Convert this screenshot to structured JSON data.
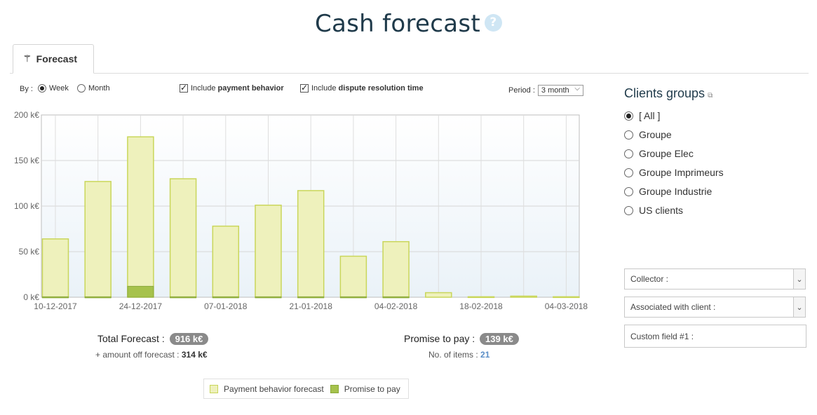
{
  "page": {
    "title": "Cash forecast",
    "help_icon": "question-circle-icon"
  },
  "tabs": [
    {
      "label": "Forecast",
      "icon": "magic-wand-icon"
    }
  ],
  "controls": {
    "by_label": "By :",
    "by_options": [
      {
        "label": "Week",
        "selected": true
      },
      {
        "label": "Month",
        "selected": false
      }
    ],
    "include_payment_prefix": "Include",
    "include_payment_bold": "payment behavior",
    "include_dispute_prefix": "Include",
    "include_dispute_bold": "dispute resolution time",
    "period_label": "Period :",
    "period_value": "3 month"
  },
  "chart_data": {
    "type": "bar",
    "stacked": true,
    "y_ticks": [
      "0 k€",
      "50 k€",
      "100 k€",
      "150 k€",
      "200 k€"
    ],
    "ylim": [
      0,
      200
    ],
    "x_tick_labels": [
      "10-12-2017",
      "24-12-2017",
      "07-01-2018",
      "21-01-2018",
      "04-02-2018",
      "18-02-2018",
      "04-03-2018"
    ],
    "series": [
      {
        "name": "Payment behavior forecast",
        "color": "#eef1bc",
        "stroke": "#c9d65a",
        "values": [
          64,
          127,
          176,
          130,
          78,
          101,
          117,
          45,
          61,
          5,
          0.5,
          1.2,
          0.5
        ]
      },
      {
        "name": "Promise to pay",
        "color": "#a6c24c",
        "stroke": "#8aa93a",
        "values": [
          0.5,
          0.5,
          12,
          0.5,
          0.5,
          0.5,
          0.5,
          0.5,
          0.5,
          0,
          0,
          0,
          0
        ]
      }
    ],
    "grid": true
  },
  "summary": {
    "total_label": "Total Forecast :",
    "total_value": "916 k€",
    "off_label": "+ amount off forecast :",
    "off_value": "314 k€",
    "promise_label": "Promise to pay :",
    "promise_value": "139 k€",
    "items_label": "No. of items :",
    "items_value": "21"
  },
  "sidebar": {
    "title": "Clients groups",
    "groups": [
      {
        "label": "[ All ]",
        "selected": true
      },
      {
        "label": "Groupe",
        "selected": false
      },
      {
        "label": "Groupe Elec",
        "selected": false
      },
      {
        "label": "Groupe Imprimeurs",
        "selected": false
      },
      {
        "label": "Groupe Industrie",
        "selected": false
      },
      {
        "label": "US clients",
        "selected": false
      }
    ],
    "collector_label": "Collector :",
    "associated_label": "Associated with client :",
    "custom_field_label": "Custom field #1 :"
  },
  "colors": {
    "forecast": "#eef1bc",
    "promise": "#a6c24c",
    "title": "#1f3a4a"
  }
}
